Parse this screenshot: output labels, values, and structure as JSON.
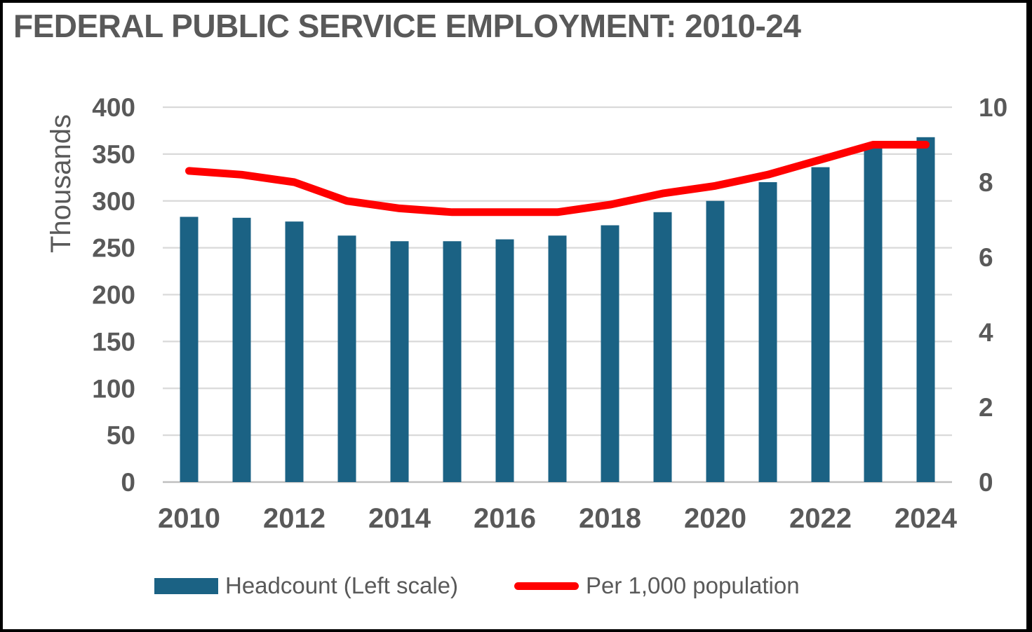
{
  "title": "FEDERAL PUBLIC SERVICE EMPLOYMENT: 2010-24",
  "colors": {
    "bar": "#1B6284",
    "line": "#FF0000",
    "text": "#595959",
    "gridline": "#D9D9D9",
    "axis_line": "#BFBFBF",
    "background": "#FFFFFF",
    "border": "#000000"
  },
  "chart_data": {
    "type": "combo",
    "subtype": "bar+line, dual axis",
    "title": "FEDERAL PUBLIC SERVICE EMPLOYMENT: 2010-24",
    "categories": [
      2010,
      2011,
      2012,
      2013,
      2014,
      2015,
      2016,
      2017,
      2018,
      2019,
      2020,
      2021,
      2022,
      2023,
      2024
    ],
    "series": [
      {
        "name": "Headcount (Left scale)",
        "type": "bar",
        "axis": "left",
        "values": [
          283,
          282,
          278,
          263,
          257,
          257,
          259,
          263,
          274,
          288,
          300,
          320,
          336,
          357,
          368
        ]
      },
      {
        "name": "Per 1,000 population",
        "type": "line",
        "axis": "right",
        "values": [
          8.3,
          8.2,
          8.0,
          7.5,
          7.3,
          7.2,
          7.2,
          7.2,
          7.4,
          7.7,
          7.9,
          8.2,
          8.6,
          9.0,
          9.0
        ]
      }
    ],
    "left_axis": {
      "label": "Thousands",
      "min": 0,
      "max": 400,
      "tick_step": 50,
      "tick_values": [
        0,
        50,
        100,
        150,
        200,
        250,
        300,
        350,
        400
      ],
      "tick_labels": [
        "0",
        "50",
        "100",
        "150",
        "200",
        "250",
        "300",
        "350",
        "400"
      ]
    },
    "right_axis": {
      "label": "",
      "min": 0,
      "max": 10,
      "tick_step": 2,
      "tick_values": [
        0,
        2,
        4,
        6,
        8,
        10
      ],
      "tick_labels": [
        "0",
        "2",
        "4",
        "6",
        "8",
        "10"
      ]
    },
    "x_axis": {
      "tick_labels": [
        "2010",
        "2012",
        "2014",
        "2016",
        "2018",
        "2020",
        "2022",
        "2024"
      ],
      "label_every_n_years": 2
    },
    "grid": "horizontal",
    "legend_position": "bottom"
  },
  "legend": {
    "items": [
      {
        "label": "Headcount (Left scale)",
        "swatch": "bar"
      },
      {
        "label": "Per 1,000 population",
        "swatch": "line"
      }
    ]
  }
}
